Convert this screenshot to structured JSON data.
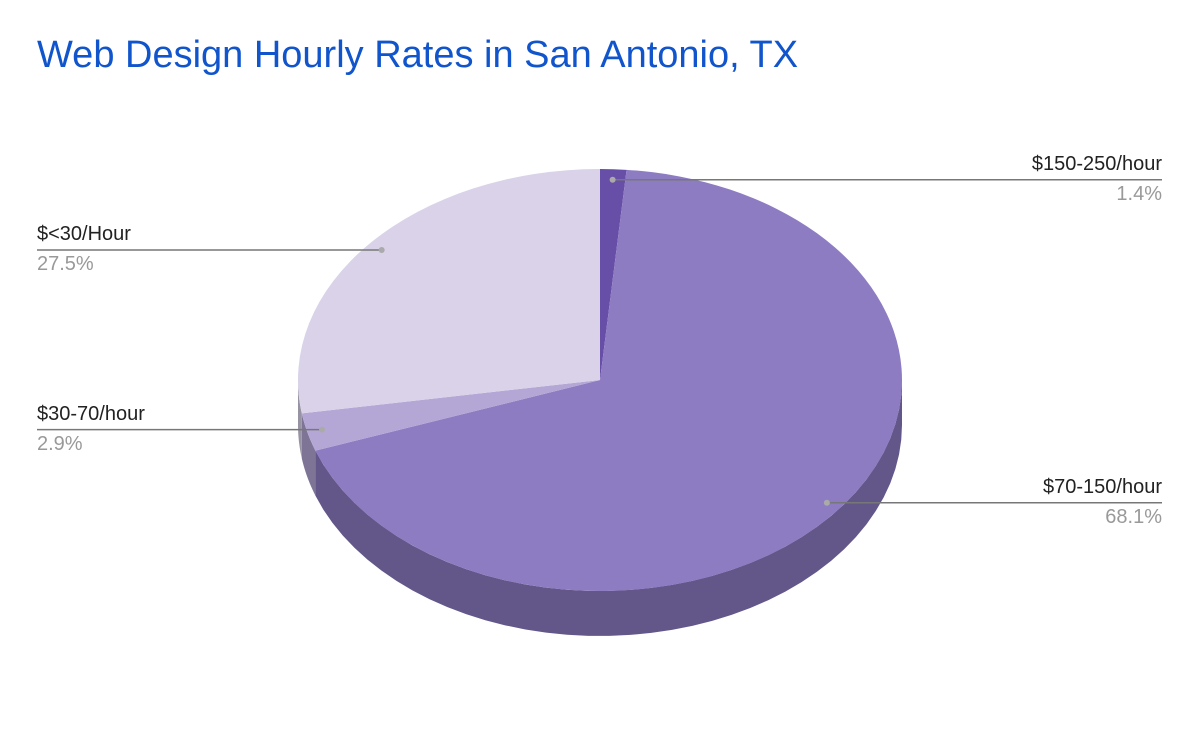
{
  "chart_data": {
    "type": "pie",
    "title": "Web Design Hourly Rates in San Antonio, TX",
    "categories": [
      "$150-250/hour",
      "$70-150/hour",
      "$30-70/hour",
      "$<30/Hour"
    ],
    "values": [
      1.4,
      68.1,
      2.9,
      27.5
    ],
    "value_labels": [
      "1.4%",
      "68.1%",
      "2.9%",
      "27.5%"
    ],
    "colors": [
      "#674ea7",
      "#8e7cc3",
      "#b4a7d6",
      "#d9d2e9"
    ]
  }
}
